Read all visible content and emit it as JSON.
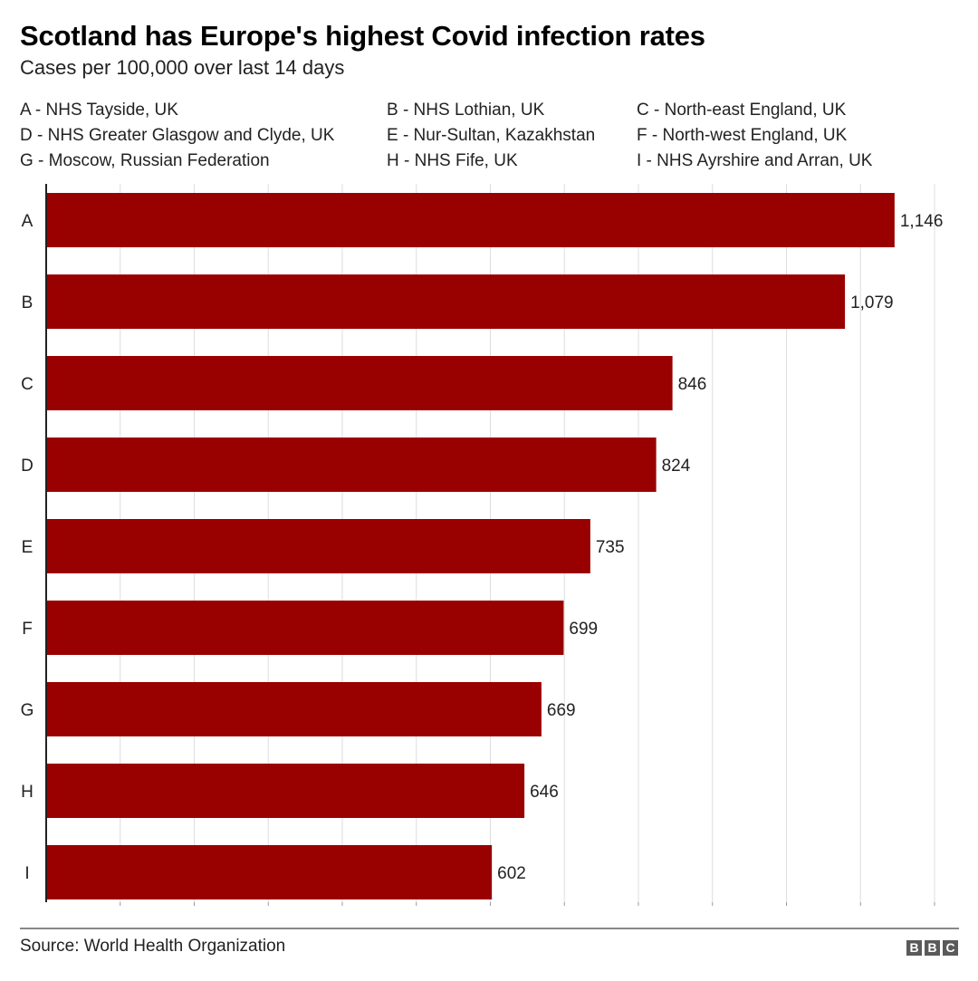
{
  "title": "Scotland has Europe's highest Covid infection rates",
  "subtitle": "Cases per 100,000 over last 14 days",
  "legend": [
    "A - NHS Tayside, UK",
    "B - NHS Lothian, UK",
    "C - North-east England, UK",
    "D - NHS Greater Glasgow and Clyde, UK",
    "E - Nur-Sultan, Kazakhstan",
    "F - North-west England, UK",
    "G - Moscow, Russian Federation",
    "H - NHS Fife, UK",
    "I - NHS Ayrshire and Arran, UK"
  ],
  "chart_data": {
    "type": "bar",
    "orientation": "horizontal",
    "categories": [
      "A",
      "B",
      "C",
      "D",
      "E",
      "F",
      "G",
      "H",
      "I"
    ],
    "values": [
      1146,
      1079,
      846,
      824,
      735,
      699,
      669,
      646,
      602
    ],
    "value_labels": [
      "1,146",
      "1,079",
      "846",
      "824",
      "735",
      "699",
      "669",
      "646",
      "602"
    ],
    "xlim": [
      0,
      1200
    ],
    "grid": true,
    "bar_color": "#990000",
    "gridline_color": "#dddddd"
  },
  "source": "Source: World Health Organization",
  "logo": [
    "B",
    "B",
    "C"
  ]
}
